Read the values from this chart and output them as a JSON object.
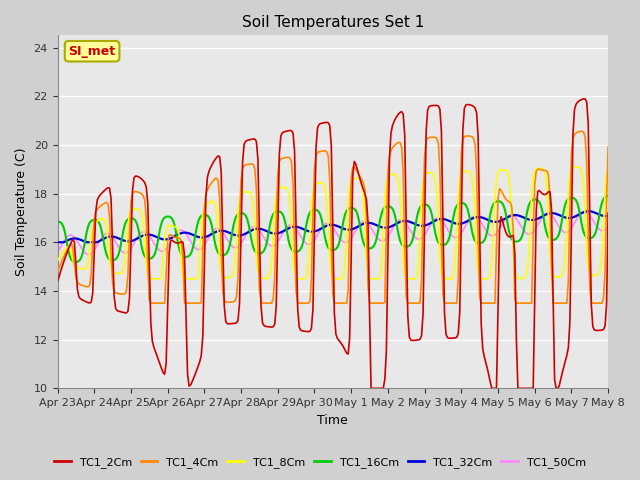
{
  "title": "Soil Temperatures Set 1",
  "xlabel": "Time",
  "ylabel": "Soil Temperature (C)",
  "ylim": [
    10,
    24.5
  ],
  "yticks": [
    10,
    12,
    14,
    16,
    18,
    20,
    22,
    24
  ],
  "fig_bg_color": "#d0d0d0",
  "plot_bg_color": "#e8e8e8",
  "series_colors": {
    "TC1_2Cm": "#cc0000",
    "TC1_4Cm": "#ff8800",
    "TC1_8Cm": "#ffff00",
    "TC1_16Cm": "#00cc00",
    "TC1_32Cm": "#0000dd",
    "TC1_50Cm": "#ff88ff"
  },
  "xtick_labels": [
    "Apr 23",
    "Apr 24",
    "Apr 25",
    "Apr 26",
    "Apr 27",
    "Apr 28",
    "Apr 29",
    "Apr 30",
    "May 1",
    "May 2",
    "May 3",
    "May 4",
    "May 5",
    "May 6",
    "May 7",
    "May 8"
  ],
  "annotation_text": "SI_met",
  "annotation_color": "#cc0000",
  "annotation_bg": "#ffff99",
  "annotation_border": "#aaaa00"
}
